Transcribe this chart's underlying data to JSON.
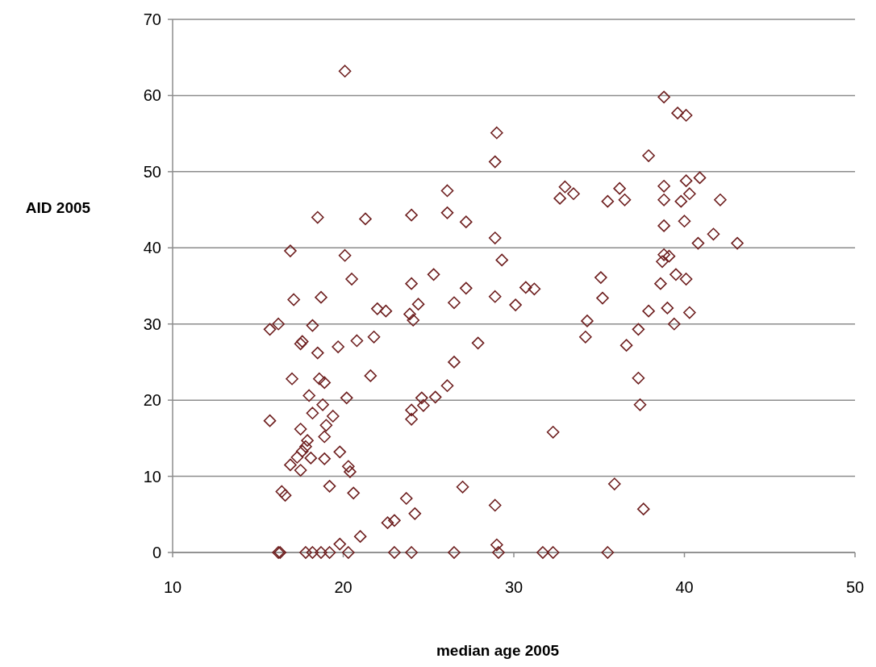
{
  "chart_data": {
    "type": "scatter",
    "xlabel": "median age 2005",
    "ylabel": "AID 2005",
    "xlim": [
      10,
      50
    ],
    "xticks": [
      10,
      20,
      30,
      40,
      50
    ],
    "ylim": [
      0,
      70
    ],
    "yticks": [
      0,
      10,
      20,
      30,
      40,
      50,
      60,
      70
    ],
    "grid": "y",
    "marker": "diamond",
    "series": [
      {
        "color": "#6e1f1f",
        "x": [
          15.7,
          15.7,
          16.2,
          16.2,
          16.3,
          16.4,
          16.6,
          16.9,
          17.0,
          16.9,
          17.1,
          17.3,
          17.5,
          17.6,
          17.5,
          17.5,
          17.6,
          17.8,
          17.8,
          17.9,
          18.2,
          18.0,
          18.2,
          18.1,
          18.2,
          18.5,
          18.5,
          18.6,
          18.7,
          18.7,
          18.8,
          18.9,
          18.9,
          18.9,
          19.0,
          19.2,
          19.2,
          19.4,
          19.7,
          19.8,
          19.8,
          20.1,
          20.1,
          20.2,
          20.3,
          20.4,
          20.3,
          20.5,
          20.6,
          20.8,
          21.0,
          21.3,
          21.6,
          21.8,
          22.0,
          22.5,
          22.6,
          23.0,
          23.0,
          23.7,
          23.9,
          24.0,
          24.0,
          24.0,
          24.0,
          24.0,
          24.1,
          24.2,
          24.4,
          24.6,
          24.7,
          25.4,
          25.3,
          26.1,
          26.1,
          26.1,
          26.5,
          26.5,
          26.5,
          27.0,
          27.2,
          27.2,
          27.9,
          28.9,
          28.9,
          28.9,
          28.9,
          29.0,
          29.0,
          29.1,
          29.3,
          30.1,
          30.7,
          31.2,
          31.7,
          32.3,
          32.3,
          33.0,
          32.7,
          33.5,
          34.3,
          34.2,
          38.8,
          39.6,
          40.1,
          37.9,
          40.1,
          40.9,
          38.8,
          36.2,
          35.5,
          36.5,
          38.8,
          39.8,
          40.3,
          42.1,
          38.8,
          40.0,
          41.7,
          40.8,
          43.1,
          38.8,
          39.1,
          38.7,
          39.5,
          40.1,
          38.6,
          35.1,
          35.2,
          39.0,
          37.9,
          40.3,
          39.4,
          37.3,
          36.6,
          37.3,
          37.4,
          35.9,
          37.6,
          35.5
        ],
        "values": [
          29.3,
          17.3,
          30.0,
          0,
          0,
          8.0,
          7.5,
          39.6,
          22.8,
          11.5,
          33.2,
          12.5,
          27.4,
          27.7,
          16.2,
          10.8,
          13.3,
          13.9,
          0,
          14.7,
          18.3,
          20.6,
          29.8,
          12.4,
          0,
          44.0,
          26.2,
          22.8,
          33.5,
          0,
          19.4,
          22.3,
          15.2,
          12.3,
          16.7,
          8.7,
          0,
          17.9,
          27.0,
          13.2,
          1.1,
          39.0,
          63.2,
          20.3,
          11.3,
          10.6,
          0,
          35.9,
          7.8,
          27.8,
          2.1,
          43.8,
          23.2,
          28.3,
          32.0,
          31.7,
          3.9,
          4.2,
          0,
          7.1,
          31.3,
          35.3,
          18.7,
          17.5,
          44.3,
          0,
          30.5,
          5.1,
          32.6,
          20.3,
          19.3,
          20.4,
          36.5,
          47.5,
          44.6,
          21.9,
          32.8,
          25.0,
          0,
          8.6,
          43.4,
          34.7,
          27.5,
          51.3,
          41.3,
          33.6,
          6.2,
          55.1,
          1.0,
          0,
          38.4,
          32.5,
          34.8,
          34.6,
          0,
          0,
          15.8,
          48.0,
          46.5,
          47.1,
          30.4,
          28.3,
          59.8,
          57.7,
          57.4,
          52.1,
          48.8,
          49.2,
          48.1,
          47.8,
          46.1,
          46.3,
          46.3,
          46.1,
          47.1,
          46.3,
          42.9,
          43.5,
          41.8,
          40.6,
          40.6,
          39.1,
          38.9,
          38.2,
          36.5,
          35.9,
          35.3,
          36.1,
          33.4,
          32.1,
          31.7,
          31.5,
          30.0,
          29.3,
          27.2,
          22.9,
          19.4,
          9.0,
          5.7,
          0
        ]
      }
    ]
  }
}
